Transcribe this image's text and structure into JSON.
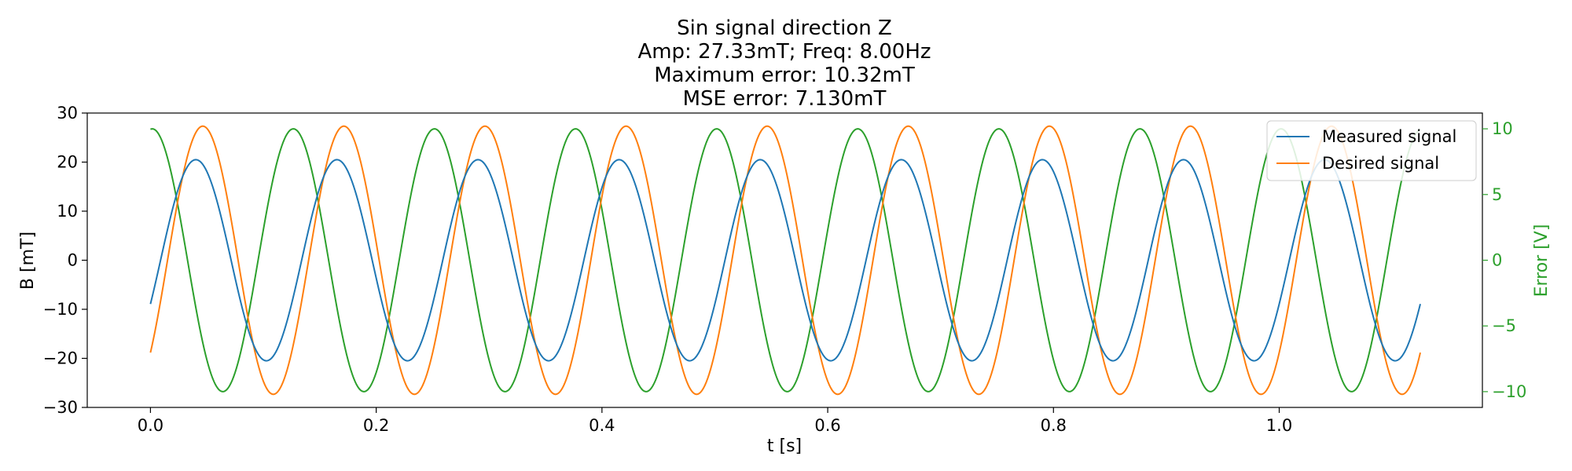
{
  "chart_data": {
    "type": "line",
    "title_lines": [
      "Sin signal direction Z",
      "Amp: 27.33mT; Freq: 8.00Hz",
      "Maximum error: 10.32mT",
      "MSE error: 7.130mT"
    ],
    "xlabel": "t [s]",
    "ylabel": "B [mT]",
    "y2label": "Error [V]",
    "xlim": [
      -0.056,
      1.18
    ],
    "ylim": [
      -30,
      30
    ],
    "y2lim": [
      -11.2,
      11.2
    ],
    "xticks": [
      0.0,
      0.2,
      0.4,
      0.6,
      0.8,
      1.0
    ],
    "xtick_labels": [
      "0.0",
      "0.2",
      "0.4",
      "0.6",
      "0.8",
      "1.0"
    ],
    "yticks": [
      -30,
      -20,
      -10,
      0,
      10,
      20,
      30
    ],
    "ytick_labels": [
      "−30",
      "−20",
      "−10",
      "0",
      "10",
      "20",
      "30"
    ],
    "y2ticks": [
      -10,
      -5,
      0,
      5,
      10
    ],
    "y2tick_labels": [
      "−10",
      "−5",
      "0",
      "5",
      "10"
    ],
    "grid": false,
    "legend_position": "top-right",
    "colors": {
      "measured": "#1f77b4",
      "desired": "#ff7f0e",
      "error": "#2ca02c"
    },
    "series": [
      {
        "name": "Measured signal",
        "axis": "left",
        "function": "sine",
        "amplitude": 20.5,
        "frequency_hz": 8.0,
        "phase_rad": -0.45,
        "t_range": [
          0.0,
          1.125
        ]
      },
      {
        "name": "Desired signal",
        "axis": "left",
        "function": "sine",
        "amplitude": 27.33,
        "frequency_hz": 8.0,
        "phase_rad": -0.76,
        "t_range": [
          0.0,
          1.125
        ]
      },
      {
        "name": "",
        "axis": "right",
        "function": "sine",
        "amplitude": 10.0,
        "frequency_hz": 8.0,
        "phase_rad": 1.49,
        "t_range": [
          0.0,
          1.125
        ]
      }
    ]
  }
}
